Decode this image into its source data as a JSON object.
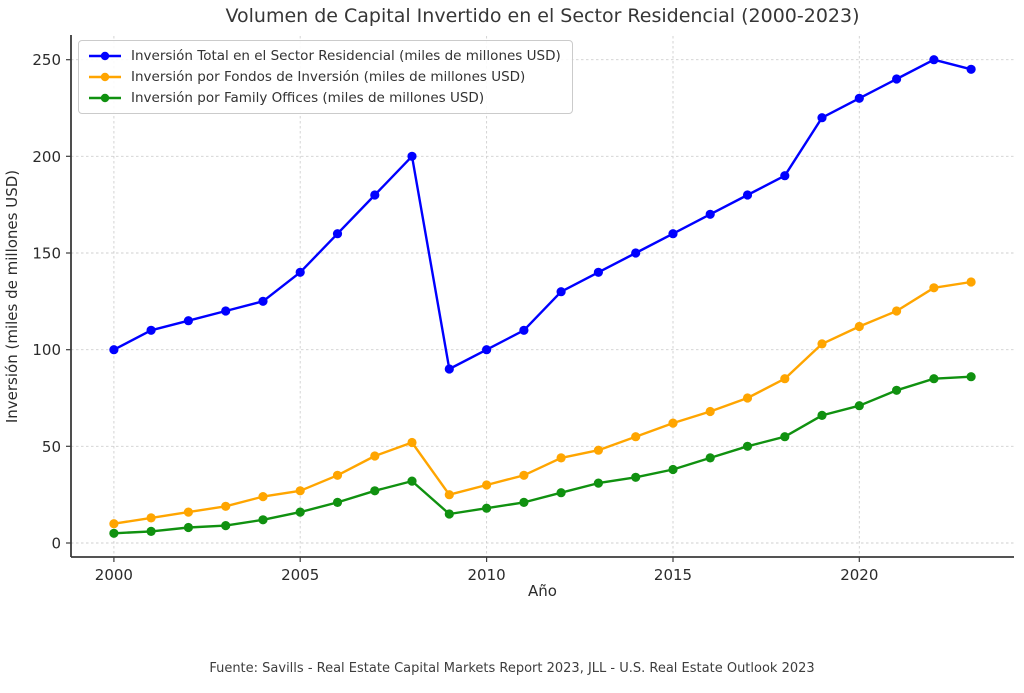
{
  "chart_data": {
    "type": "line",
    "title": "Volumen de Capital Invertido en el Sector Residencial (2000-2023)",
    "xlabel": "Año",
    "ylabel": "Inversión (miles de millones USD)",
    "source_note": "Fuente: Savills - Real Estate Capital Markets Report 2023, JLL - U.S. Real Estate Outlook 2023",
    "x": [
      2000,
      2001,
      2002,
      2003,
      2004,
      2005,
      2006,
      2007,
      2008,
      2009,
      2010,
      2011,
      2012,
      2013,
      2014,
      2015,
      2016,
      2017,
      2018,
      2019,
      2020,
      2021,
      2022,
      2023
    ],
    "series": [
      {
        "name": "Inversión Total en el Sector Residencial (miles de millones USD)",
        "color": "#0000ff",
        "values": [
          100,
          110,
          115,
          120,
          125,
          140,
          160,
          180,
          200,
          90,
          100,
          110,
          130,
          140,
          150,
          160,
          170,
          180,
          190,
          220,
          230,
          240,
          250,
          245
        ]
      },
      {
        "name": "Inversión por Fondos de Inversión (miles de millones USD)",
        "color": "#ffa500",
        "values": [
          10,
          13,
          16,
          19,
          24,
          27,
          35,
          45,
          52,
          25,
          30,
          35,
          44,
          48,
          55,
          62,
          68,
          75,
          85,
          103,
          112,
          120,
          132,
          135
        ]
      },
      {
        "name": "Inversión por Family Offices (miles de millones USD)",
        "color": "#109110",
        "values": [
          5,
          6,
          8,
          9,
          12,
          16,
          21,
          27,
          32,
          15,
          18,
          21,
          26,
          31,
          34,
          38,
          44,
          50,
          55,
          66,
          71,
          79,
          85,
          86
        ]
      }
    ],
    "xticks": [
      2000,
      2005,
      2010,
      2015,
      2020
    ],
    "yticks": [
      0,
      50,
      100,
      150,
      200,
      250
    ],
    "xlim": [
      1998.85,
      2024.15
    ],
    "ylim": [
      -7.25,
      262.25
    ],
    "grid": true,
    "grid_style": "dashed",
    "legend_position": "upper-left",
    "marker": "circle"
  }
}
